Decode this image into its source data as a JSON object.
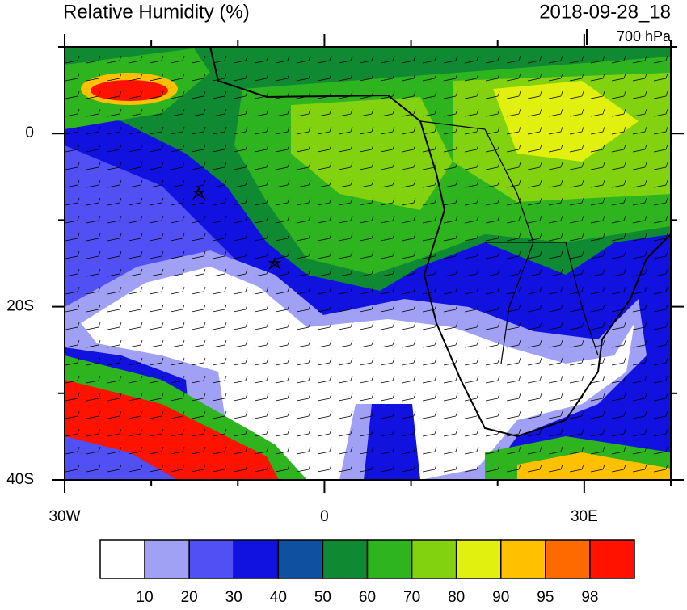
{
  "map": {
    "title": "Relative Humidity (%)",
    "date": "2018-09-28_18",
    "level": "700 hPa",
    "lon_range": [
      -30,
      40
    ],
    "lat_range": [
      -40,
      10
    ],
    "lon_ticks": [
      {
        "value": -30,
        "label": "30W"
      },
      {
        "value": 0,
        "label": "0"
      },
      {
        "value": 30,
        "label": "30E"
      }
    ],
    "lat_ticks": [
      {
        "value": 0,
        "label": "0"
      },
      {
        "value": -20,
        "label": "20S"
      },
      {
        "value": -40,
        "label": "40S"
      }
    ],
    "lon_minor_ticks": [
      -20,
      -10,
      10,
      20,
      40
    ],
    "lat_minor_ticks": [
      10,
      -10,
      -30
    ]
  },
  "colorbar": {
    "levels": [
      10,
      20,
      30,
      40,
      50,
      60,
      70,
      80,
      90,
      95,
      98
    ],
    "colors": [
      "#ffffff",
      "#a0a0f5",
      "#5050f5",
      "#1212e0",
      "#0f50a0",
      "#0f8a32",
      "#2db41e",
      "#82d20f",
      "#e1f00f",
      "#ffc000",
      "#ff6a00",
      "#ff1200"
    ]
  }
}
